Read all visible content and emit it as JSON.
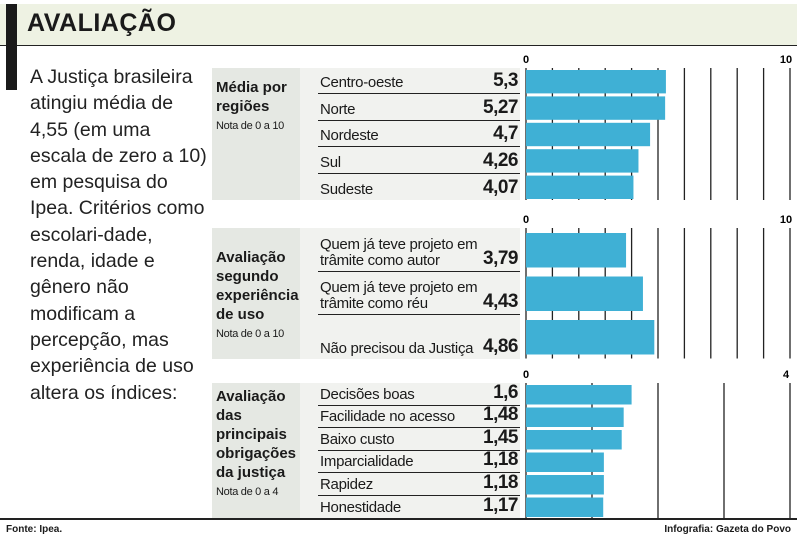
{
  "header": {
    "title": "AVALIAÇÃO"
  },
  "intro": "A Justiça brasileira atingiu média de 4,55 (em uma escala de zero a 10) em pesquisa do Ipea. Critérios como escolari-dade, renda, idade e gênero não modificam a percepção, mas experiência de uso altera os índices:",
  "footer": {
    "source": "Fonte: Ipea.",
    "credit": "Infografia: Gazeta do Povo"
  },
  "colors": {
    "bar": "#3fb0d5"
  },
  "chart_data": [
    {
      "type": "bar",
      "title": "Média por regiões",
      "subtitle": "Nota de 0 a 10",
      "axis_min_label": "0",
      "axis_max_label": "10",
      "xlim": [
        0,
        10
      ],
      "categories": [
        "Centro-oeste",
        "Norte",
        "Nordeste",
        "Sul",
        "Sudeste"
      ],
      "values": [
        5.3,
        5.27,
        4.7,
        4.26,
        4.07
      ],
      "labels": [
        "5,3",
        "5,27",
        "4,7",
        "4,26",
        "4,07"
      ]
    },
    {
      "type": "bar",
      "title": "Avaliação segundo experiência de uso",
      "subtitle": "Nota de 0 a 10",
      "axis_min_label": "0",
      "axis_max_label": "10",
      "xlim": [
        0,
        10
      ],
      "categories": [
        "Quem já teve projeto em trâmite como autor",
        "Quem já teve projeto em trâmite como réu",
        "Não precisou da Justiça"
      ],
      "values": [
        3.79,
        4.43,
        4.86
      ],
      "labels": [
        "3,79",
        "4,43",
        "4,86"
      ]
    },
    {
      "type": "bar",
      "title": "Avaliação das principais obrigações da justiça",
      "subtitle": "Nota de 0 a 4",
      "axis_min_label": "0",
      "axis_max_label": "4",
      "xlim": [
        0,
        4
      ],
      "categories": [
        "Decisões boas",
        "Facilidade no acesso",
        "Baixo custo",
        "Imparcialidade",
        "Rapidez",
        "Honestidade"
      ],
      "values": [
        1.6,
        1.48,
        1.45,
        1.18,
        1.18,
        1.17
      ],
      "labels": [
        "1,6",
        "1,48",
        "1,45",
        "1,18",
        "1,18",
        "1,17"
      ]
    }
  ]
}
